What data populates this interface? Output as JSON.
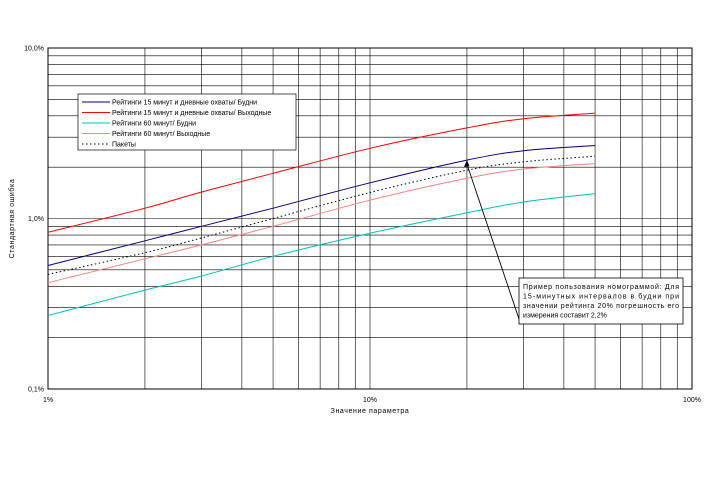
{
  "chart_data": {
    "type": "line",
    "xscale": "log",
    "yscale": "log",
    "xlabel": "Значение параметра",
    "ylabel": "Стандартная ошибка",
    "xlim": [
      1,
      100
    ],
    "ylim": [
      0.1,
      10
    ],
    "x_ticks": [
      "1%",
      "10%",
      "100%"
    ],
    "y_ticks": [
      "0,1%",
      "1,0%",
      "10,0%"
    ],
    "grid": true,
    "legend_position": "top-left",
    "series": [
      {
        "name": "Рейтинги 15 минут и дневные охваты/ Будни",
        "color": "#000080",
        "dash": "solid",
        "x": [
          1,
          2,
          3,
          5,
          10,
          20,
          30,
          50
        ],
        "y": [
          0.53,
          0.74,
          0.9,
          1.15,
          1.62,
          2.2,
          2.5,
          2.68
        ]
      },
      {
        "name": "Рейтинги 15 минут и дневные охваты/ Выходные",
        "color": "#ff0000",
        "dash": "solid",
        "x": [
          1,
          2,
          3,
          5,
          10,
          20,
          30,
          50
        ],
        "y": [
          0.83,
          1.15,
          1.43,
          1.84,
          2.58,
          3.4,
          3.85,
          4.15
        ]
      },
      {
        "name": "Рейтинги 60 минут/ Будни",
        "color": "#00c0c0",
        "dash": "solid",
        "x": [
          1,
          2,
          3,
          5,
          10,
          20,
          30,
          50
        ],
        "y": [
          0.27,
          0.38,
          0.46,
          0.6,
          0.82,
          1.08,
          1.25,
          1.4
        ]
      },
      {
        "name": "Рейтинги 60 минут/ Выходные",
        "color": "#ff8080",
        "dash": "solid",
        "x": [
          1,
          2,
          3,
          5,
          10,
          20,
          30,
          50
        ],
        "y": [
          0.42,
          0.58,
          0.7,
          0.9,
          1.28,
          1.72,
          1.95,
          2.1
        ]
      },
      {
        "name": "Пакеты",
        "color": "#000000",
        "dash": "dotted",
        "x": [
          1,
          2,
          3,
          5,
          10,
          20,
          30,
          50
        ],
        "y": [
          0.47,
          0.63,
          0.77,
          1.0,
          1.42,
          1.92,
          2.15,
          2.32
        ]
      }
    ],
    "annotation": {
      "text": "Пример пользования номограммой: Для 15-минутных интервалов в будни при значении рейтинга 20% погрешность его измерения составит 2,2%",
      "point": {
        "x": 20,
        "y": 2.2
      }
    }
  }
}
